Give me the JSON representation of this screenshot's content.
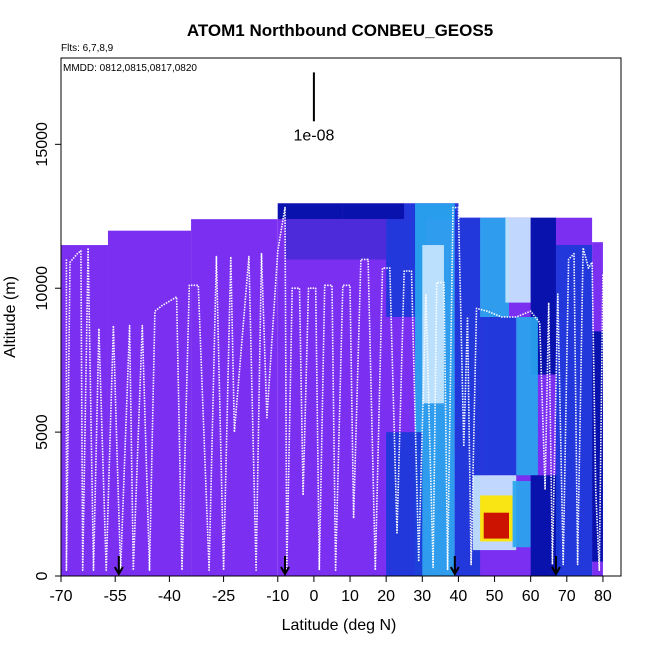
{
  "chart_data": {
    "type": "heatmap",
    "title": "ATOM1 Northbound CONBEU_GEOS5",
    "flights_note": "Flts: 6,7,8,9",
    "dates_note": "MMDD: 0812,0815,0817,0820",
    "xlabel": "Latitude (deg N)",
    "ylabel": "Altitude (m)",
    "xlim": [
      -70,
      85
    ],
    "ylim": [
      0,
      18000
    ],
    "x_ticks": [
      -70,
      -55,
      -40,
      -25,
      -10,
      0,
      10,
      20,
      30,
      40,
      50,
      60,
      70,
      80
    ],
    "y_ticks": [
      0,
      5000,
      10000,
      15000
    ],
    "scale_bar": {
      "label": "1e-08",
      "x": 0,
      "y_range": [
        15800,
        17500
      ]
    },
    "flight_boundaries_lat": [
      -54,
      -8,
      39,
      67
    ],
    "background_color": "#7b2ff0",
    "colors": {
      "violet": "#7b2ff0",
      "indigo": "#4a2bd8",
      "blue": "#1a3ad8",
      "deep_blue": "#0010a8",
      "sky": "#29a6ee",
      "light": "#c8e6ff",
      "yellow": "#ffe600",
      "red": "#c80000",
      "track": "#ffffff"
    },
    "region_tops": [
      {
        "lat_range": [
          -70,
          -57
        ],
        "top": 11500
      },
      {
        "lat_range": [
          -57,
          -34
        ],
        "top": 12000
      },
      {
        "lat_range": [
          -34,
          -10
        ],
        "top": 12400
      },
      {
        "lat_range": [
          -10,
          40
        ],
        "top": 12950
      },
      {
        "lat_range": [
          40,
          77
        ],
        "top": 12450
      },
      {
        "lat_range": [
          77,
          80
        ],
        "top": 11600
      }
    ],
    "cells": [
      {
        "lat_range": [
          -10,
          8
        ],
        "alt_range": [
          12400,
          12950
        ],
        "color": "deep_blue"
      },
      {
        "lat_range": [
          8,
          25
        ],
        "alt_range": [
          12400,
          12950
        ],
        "color": "deep_blue"
      },
      {
        "lat_range": [
          25,
          40
        ],
        "alt_range": [
          12400,
          12950
        ],
        "color": "blue"
      },
      {
        "lat_range": [
          -8,
          20
        ],
        "alt_range": [
          11000,
          12400
        ],
        "color": "indigo"
      },
      {
        "lat_range": [
          20,
          31
        ],
        "alt_range": [
          9000,
          12400
        ],
        "color": "blue"
      },
      {
        "lat_range": [
          28,
          39
        ],
        "alt_range": [
          0,
          12950
        ],
        "color": "sky"
      },
      {
        "lat_range": [
          30,
          36
        ],
        "alt_range": [
          6000,
          11500
        ],
        "color": "light"
      },
      {
        "lat_range": [
          20,
          30
        ],
        "alt_range": [
          0,
          5000
        ],
        "color": "blue"
      },
      {
        "lat_range": [
          39,
          46
        ],
        "alt_range": [
          0,
          12450
        ],
        "color": "blue"
      },
      {
        "lat_range": [
          46,
          54
        ],
        "alt_range": [
          9000,
          12450
        ],
        "color": "sky"
      },
      {
        "lat_range": [
          53,
          60
        ],
        "alt_range": [
          9500,
          12450
        ],
        "color": "light"
      },
      {
        "lat_range": [
          60,
          67
        ],
        "alt_range": [
          7000,
          12450
        ],
        "color": "deep_blue"
      },
      {
        "lat_range": [
          46,
          56
        ],
        "alt_range": [
          3500,
          9000
        ],
        "color": "blue"
      },
      {
        "lat_range": [
          56,
          62
        ],
        "alt_range": [
          3500,
          9000
        ],
        "color": "sky"
      },
      {
        "lat_range": [
          44,
          56
        ],
        "alt_range": [
          900,
          3500
        ],
        "color": "light"
      },
      {
        "lat_range": [
          46,
          55
        ],
        "alt_range": [
          1200,
          2800
        ],
        "color": "yellow"
      },
      {
        "lat_range": [
          47,
          54
        ],
        "alt_range": [
          1300,
          2200
        ],
        "color": "red"
      },
      {
        "lat_range": [
          55,
          60
        ],
        "alt_range": [
          1000,
          3300
        ],
        "color": "sky"
      },
      {
        "lat_range": [
          60,
          68
        ],
        "alt_range": [
          0,
          3500
        ],
        "color": "deep_blue"
      },
      {
        "lat_range": [
          67,
          77
        ],
        "alt_range": [
          0,
          11500
        ],
        "color": "blue"
      },
      {
        "lat_range": [
          77,
          80
        ],
        "alt_range": [
          500,
          8500
        ],
        "color": "deep_blue"
      }
    ],
    "flight_track": [
      [
        -68.5,
        11000
      ],
      [
        -68.5,
        200
      ],
      [
        -67.5,
        10900
      ],
      [
        -65.5,
        11200
      ],
      [
        -64.5,
        11300
      ],
      [
        -64,
        200
      ],
      [
        -62.5,
        11400
      ],
      [
        -61,
        200
      ],
      [
        -59.5,
        8600
      ],
      [
        -57.5,
        200
      ],
      [
        -55.5,
        8700
      ],
      [
        -54.5,
        4300
      ],
      [
        -53.5,
        200
      ],
      [
        -51,
        8700
      ],
      [
        -50,
        200
      ],
      [
        -47.5,
        8700
      ],
      [
        -45.5,
        200
      ],
      [
        -44,
        9200
      ],
      [
        -42,
        9400
      ],
      [
        -38,
        9700
      ],
      [
        -36.5,
        200
      ],
      [
        -34.5,
        10100
      ],
      [
        -32,
        10100
      ],
      [
        -29,
        200
      ],
      [
        -27,
        11100
      ],
      [
        -25,
        200
      ],
      [
        -23,
        11100
      ],
      [
        -22,
        5000
      ],
      [
        -18,
        11100
      ],
      [
        -16,
        200
      ],
      [
        -14.5,
        11200
      ],
      [
        -13,
        5500
      ],
      [
        -10,
        11300
      ],
      [
        -8,
        12800
      ],
      [
        -7.5,
        200
      ],
      [
        -6,
        10000
      ],
      [
        -4,
        10000
      ],
      [
        -3,
        2800
      ],
      [
        -1.5,
        10000
      ],
      [
        0.5,
        10000
      ],
      [
        1.5,
        200
      ],
      [
        3,
        10100
      ],
      [
        5,
        10100
      ],
      [
        6,
        200
      ],
      [
        8,
        10100
      ],
      [
        10,
        10100
      ],
      [
        11,
        2000
      ],
      [
        13,
        11000
      ],
      [
        15,
        11000
      ],
      [
        17,
        200
      ],
      [
        19,
        10700
      ],
      [
        21,
        10700
      ],
      [
        23,
        1500
      ],
      [
        25,
        10600
      ],
      [
        27,
        10600
      ],
      [
        29,
        500
      ],
      [
        31,
        9800
      ],
      [
        33,
        300
      ],
      [
        34,
        10200
      ],
      [
        36,
        10200
      ],
      [
        37,
        200
      ],
      [
        38.5,
        12800
      ],
      [
        40,
        12800
      ],
      [
        41.5,
        4500
      ],
      [
        42.5,
        9000
      ],
      [
        43.5,
        400
      ],
      [
        45,
        9300
      ],
      [
        48,
        9200
      ],
      [
        52,
        9000
      ],
      [
        56,
        9000
      ],
      [
        60,
        9200
      ],
      [
        62.5,
        8800
      ],
      [
        64,
        3000
      ],
      [
        65,
        9500
      ],
      [
        66,
        400
      ],
      [
        67.5,
        9800
      ],
      [
        69,
        400
      ],
      [
        70.5,
        11000
      ],
      [
        72,
        11200
      ],
      [
        73,
        400
      ],
      [
        74.5,
        11400
      ],
      [
        76,
        10700
      ],
      [
        77,
        10900
      ],
      [
        78,
        3000
      ],
      [
        79,
        200
      ],
      [
        80,
        10500
      ]
    ]
  }
}
